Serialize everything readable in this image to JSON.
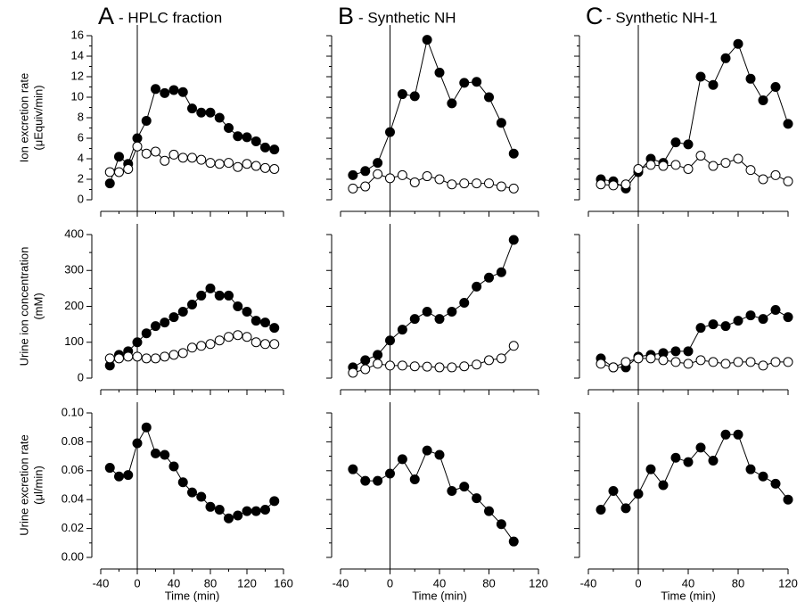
{
  "chart_data": [
    {
      "type": "line",
      "label": "A",
      "title": "- HPLC fraction",
      "ylabel": [
        "Ion excretion rate",
        "(μEquiv/min)"
      ],
      "x": [
        -30,
        -20,
        -10,
        0,
        10,
        20,
        30,
        40,
        50,
        60,
        70,
        80,
        90,
        100,
        110,
        120,
        130,
        140,
        150
      ],
      "series": [
        {
          "color": "#000000",
          "fill": "#000000",
          "values": [
            1.6,
            4.2,
            3.5,
            6.0,
            7.7,
            10.8,
            10.4,
            10.7,
            10.5,
            8.9,
            8.5,
            8.5,
            8.0,
            7.0,
            6.2,
            6.1,
            5.7,
            5.1,
            4.9
          ]
        },
        {
          "color": "#000000",
          "fill": "#ffffff",
          "values": [
            2.7,
            2.7,
            3.0,
            5.2,
            4.5,
            4.7,
            3.8,
            4.4,
            4.1,
            4.1,
            3.9,
            3.6,
            3.5,
            3.6,
            3.2,
            3.5,
            3.3,
            3.1,
            3.0
          ]
        }
      ],
      "xlim": [
        -40,
        160
      ],
      "xticks": [
        -40,
        0,
        40,
        80,
        120,
        160
      ],
      "xtick_labels": false,
      "ylim": [
        0,
        16
      ],
      "yticks": [
        0,
        2,
        4,
        6,
        8,
        10,
        12,
        14,
        16
      ],
      "ytick_labels": true,
      "vline": 0
    },
    {
      "type": "line",
      "label": "B",
      "title": "- Synthetic NH",
      "x": [
        -30,
        -20,
        -10,
        0,
        10,
        20,
        30,
        40,
        50,
        60,
        70,
        80,
        90,
        100
      ],
      "series": [
        {
          "color": "#000000",
          "fill": "#000000",
          "values": [
            2.4,
            2.8,
            3.6,
            6.6,
            10.3,
            10.1,
            15.6,
            12.4,
            9.4,
            11.4,
            11.5,
            10.0,
            7.5,
            4.5
          ]
        },
        {
          "color": "#000000",
          "fill": "#ffffff",
          "values": [
            1.1,
            1.3,
            2.5,
            2.1,
            2.4,
            1.7,
            2.3,
            2.0,
            1.5,
            1.6,
            1.6,
            1.6,
            1.3,
            1.1
          ]
        }
      ],
      "xlim": [
        -40,
        120
      ],
      "xticks": [
        -40,
        0,
        40,
        80,
        120
      ],
      "xtick_labels": false,
      "ylim": [
        0,
        16
      ],
      "yticks": [
        0,
        2,
        4,
        6,
        8,
        10,
        12,
        14,
        16
      ],
      "ytick_labels": false,
      "vline": 0
    },
    {
      "type": "line",
      "label": "C",
      "title": "- Synthetic NH-1",
      "x": [
        -30,
        -20,
        -10,
        0,
        10,
        20,
        30,
        40,
        50,
        60,
        70,
        80,
        90,
        100,
        110,
        120
      ],
      "series": [
        {
          "color": "#000000",
          "fill": "#000000",
          "values": [
            2.0,
            1.8,
            1.1,
            2.7,
            4.0,
            3.6,
            5.6,
            5.4,
            12.0,
            11.2,
            13.8,
            15.2,
            11.8,
            9.7,
            11.0,
            7.4
          ]
        },
        {
          "color": "#000000",
          "fill": "#ffffff",
          "values": [
            1.5,
            1.4,
            1.5,
            3.0,
            3.4,
            3.3,
            3.4,
            3.0,
            4.3,
            3.3,
            3.6,
            4.0,
            2.9,
            2.0,
            2.4,
            1.8
          ]
        }
      ],
      "xlim": [
        -40,
        120
      ],
      "xticks": [
        -40,
        0,
        40,
        80,
        120
      ],
      "xtick_labels": false,
      "ylim": [
        0,
        16
      ],
      "yticks": [
        0,
        2,
        4,
        6,
        8,
        10,
        12,
        14,
        16
      ],
      "ytick_labels": false,
      "vline": 0
    },
    {
      "type": "line",
      "ylabel": [
        "Urine ion concentration",
        "(mM)"
      ],
      "x": [
        -30,
        -20,
        -10,
        0,
        10,
        20,
        30,
        40,
        50,
        60,
        70,
        80,
        90,
        100,
        110,
        120,
        130,
        140,
        150
      ],
      "series": [
        {
          "color": "#000000",
          "fill": "#000000",
          "values": [
            35,
            65,
            75,
            100,
            125,
            145,
            155,
            170,
            185,
            205,
            230,
            250,
            230,
            230,
            200,
            185,
            160,
            155,
            140
          ]
        },
        {
          "color": "#000000",
          "fill": "#ffffff",
          "values": [
            55,
            55,
            60,
            60,
            55,
            55,
            60,
            65,
            70,
            85,
            90,
            95,
            105,
            115,
            120,
            115,
            100,
            95,
            95
          ]
        }
      ],
      "xlim": [
        -40,
        160
      ],
      "xticks": [
        -40,
        0,
        40,
        80,
        120,
        160
      ],
      "xtick_labels": false,
      "ylim": [
        0,
        400
      ],
      "yticks": [
        0,
        100,
        200,
        300,
        400
      ],
      "ytick_labels": true,
      "vline": 0
    },
    {
      "type": "line",
      "x": [
        -30,
        -20,
        -10,
        0,
        10,
        20,
        30,
        40,
        50,
        60,
        70,
        80,
        90,
        100
      ],
      "series": [
        {
          "color": "#000000",
          "fill": "#000000",
          "values": [
            30,
            50,
            65,
            105,
            135,
            165,
            185,
            165,
            185,
            210,
            255,
            280,
            295,
            385
          ]
        },
        {
          "color": "#000000",
          "fill": "#ffffff",
          "values": [
            15,
            25,
            40,
            35,
            35,
            33,
            32,
            30,
            30,
            33,
            38,
            50,
            55,
            90
          ]
        }
      ],
      "xlim": [
        -40,
        120
      ],
      "xticks": [
        -40,
        0,
        40,
        80,
        120
      ],
      "xtick_labels": false,
      "ylim": [
        0,
        400
      ],
      "yticks": [
        0,
        100,
        200,
        300,
        400
      ],
      "ytick_labels": false,
      "vline": 0
    },
    {
      "type": "line",
      "x": [
        -30,
        -20,
        -10,
        0,
        10,
        20,
        30,
        40,
        50,
        60,
        70,
        80,
        90,
        100,
        110,
        120
      ],
      "series": [
        {
          "color": "#000000",
          "fill": "#000000",
          "values": [
            55,
            30,
            30,
            60,
            65,
            70,
            75,
            75,
            140,
            150,
            145,
            160,
            175,
            165,
            190,
            170
          ]
        },
        {
          "color": "#000000",
          "fill": "#ffffff",
          "values": [
            40,
            30,
            45,
            55,
            55,
            50,
            45,
            40,
            50,
            45,
            40,
            45,
            45,
            35,
            45,
            45
          ]
        }
      ],
      "xlim": [
        -40,
        120
      ],
      "xticks": [
        -40,
        0,
        40,
        80,
        120
      ],
      "xtick_labels": false,
      "ylim": [
        0,
        400
      ],
      "yticks": [
        0,
        100,
        200,
        300,
        400
      ],
      "ytick_labels": false,
      "vline": 0
    },
    {
      "type": "line",
      "ylabel": [
        "Urine excretion rate",
        "(μl/min)"
      ],
      "xlabel": "Time (min)",
      "x": [
        -30,
        -20,
        -10,
        0,
        10,
        20,
        30,
        40,
        50,
        60,
        70,
        80,
        90,
        100,
        110,
        120,
        130,
        140,
        150
      ],
      "series": [
        {
          "color": "#000000",
          "fill": "#000000",
          "values": [
            0.062,
            0.056,
            0.057,
            0.079,
            0.09,
            0.072,
            0.071,
            0.063,
            0.052,
            0.045,
            0.042,
            0.035,
            0.033,
            0.027,
            0.029,
            0.032,
            0.032,
            0.033,
            0.039
          ]
        }
      ],
      "xlim": [
        -40,
        160
      ],
      "xticks": [
        -40,
        0,
        40,
        80,
        120,
        160
      ],
      "xtick_labels": true,
      "ylim": [
        0,
        0.1
      ],
      "yticks": [
        {
          "value": 0,
          "label": "0.00"
        },
        {
          "value": 0.02,
          "label": "0.02"
        },
        {
          "value": 0.04,
          "label": "0.04"
        },
        {
          "value": 0.06,
          "label": "0.06"
        },
        {
          "value": 0.08,
          "label": "0.08"
        },
        {
          "value": 0.1,
          "label": "0.10"
        }
      ],
      "ytick_labels": true,
      "vline": 0
    },
    {
      "type": "line",
      "xlabel": "Time (min)",
      "x": [
        -30,
        -20,
        -10,
        0,
        10,
        20,
        30,
        40,
        50,
        60,
        70,
        80,
        90,
        100
      ],
      "series": [
        {
          "color": "#000000",
          "fill": "#000000",
          "values": [
            0.061,
            0.053,
            0.053,
            0.058,
            0.068,
            0.054,
            0.074,
            0.071,
            0.046,
            0.049,
            0.041,
            0.032,
            0.023,
            0.011
          ]
        }
      ],
      "xlim": [
        -40,
        120
      ],
      "xticks": [
        -40,
        0,
        40,
        80,
        120
      ],
      "xtick_labels": true,
      "ylim": [
        0,
        0.1
      ],
      "yticks": [
        0,
        0.02,
        0.04,
        0.06,
        0.08,
        0.1
      ],
      "ytick_labels": false,
      "vline": 0
    },
    {
      "type": "line",
      "xlabel": "Time (min)",
      "x": [
        -30,
        -20,
        -10,
        0,
        10,
        20,
        30,
        40,
        50,
        60,
        70,
        80,
        90,
        100,
        110,
        120
      ],
      "series": [
        {
          "color": "#000000",
          "fill": "#000000",
          "values": [
            0.033,
            0.046,
            0.034,
            0.044,
            0.061,
            0.05,
            0.069,
            0.066,
            0.076,
            0.067,
            0.085,
            0.085,
            0.061,
            0.056,
            0.051,
            0.04
          ]
        }
      ],
      "xlim": [
        -40,
        120
      ],
      "xticks": [
        -40,
        0,
        40,
        80,
        120
      ],
      "xtick_labels": true,
      "ylim": [
        0,
        0.1
      ],
      "yticks": [
        0,
        0.02,
        0.04,
        0.06,
        0.08,
        0.1
      ],
      "ytick_labels": false,
      "vline": 0
    }
  ]
}
